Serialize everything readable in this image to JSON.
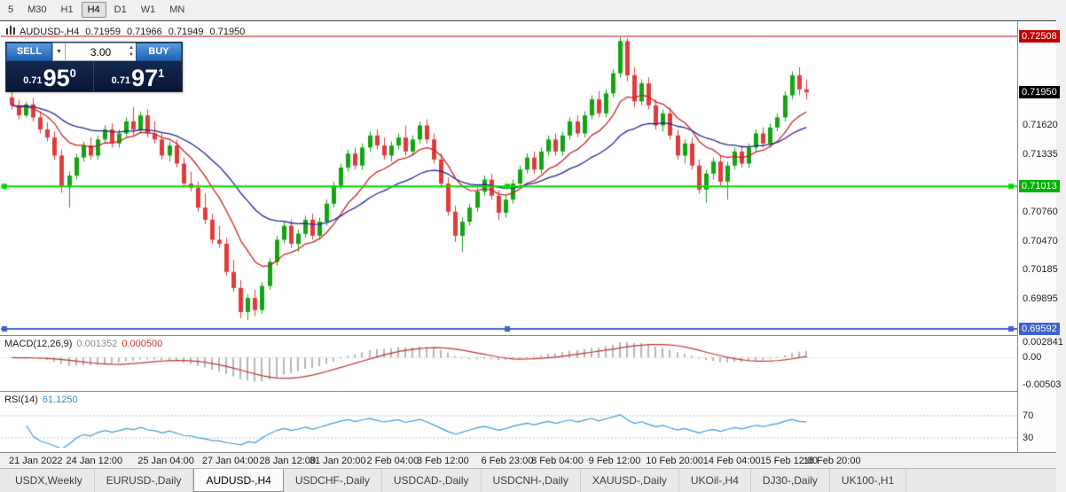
{
  "colors": {
    "up": "#13a413",
    "down": "#e13b3b",
    "ma_fast": "#cc2222",
    "ma_slow": "#22229a",
    "macd_hist": "#b6b6b6",
    "macd_signal": "#c43333",
    "rsi_line": "#3d9ade",
    "level_line": "#bdbdbd"
  },
  "toolbar": {
    "timeframes": [
      "5",
      "M30",
      "H1",
      "H4",
      "D1",
      "W1",
      "MN"
    ],
    "active": "H4"
  },
  "ohlc": {
    "symbol": "AUDUSD-,H4",
    "open": "0.71959",
    "high": "0.71966",
    "low": "0.71949",
    "close": "0.71950"
  },
  "one_click": {
    "sell_label": "SELL",
    "buy_label": "BUY",
    "volume": "3.00",
    "sell_prefix": "0.71",
    "sell_big": "95",
    "sell_sup": "0",
    "buy_prefix": "0.71",
    "buy_big": "97",
    "buy_sup": "1"
  },
  "price_axis": [
    {
      "text": "0.72508",
      "price": 0.72508,
      "badge": "red"
    },
    {
      "text": "0.71950",
      "price": 0.7195,
      "badge": "black"
    },
    {
      "text": "0.71620",
      "price": 0.7162
    },
    {
      "text": "0.71335",
      "price": 0.71335
    },
    {
      "text": "0.71013",
      "price": 0.71013,
      "badge": "green"
    },
    {
      "text": "0.70760",
      "price": 0.7076
    },
    {
      "text": "0.70470",
      "price": 0.7047
    },
    {
      "text": "0.70185",
      "price": 0.70185
    },
    {
      "text": "0.69895",
      "price": 0.69895
    },
    {
      "text": "0.69592",
      "price": 0.69592,
      "badge": "blue"
    }
  ],
  "hlines": [
    {
      "price": 0.72508,
      "color": "#cc0000",
      "width": 1,
      "handles": false
    },
    {
      "price": 0.71013,
      "color": "#00dd00",
      "width": 2,
      "handles": true
    },
    {
      "price": 0.69592,
      "color": "#3f62cf",
      "width": 2,
      "handles": true
    }
  ],
  "macd": {
    "label": "MACD(12,26,9)",
    "value_main": "0.001352",
    "value_signal": "0.000500",
    "axis_labels": [
      {
        "text": "0.002841",
        "value": 0.002841
      },
      {
        "text": "0.00",
        "value": 0
      },
      {
        "text": "-0.00503",
        "value": -0.00503
      }
    ]
  },
  "rsi": {
    "label": "RSI(14)",
    "value": "61.1250",
    "levels": [
      {
        "text": "70",
        "value": 70
      },
      {
        "text": "30",
        "value": 30
      }
    ]
  },
  "time_axis": [
    {
      "text": "21 Jan 2022",
      "bar": 0
    },
    {
      "text": "24 Jan 12:00",
      "bar": 8
    },
    {
      "text": "25 Jan 04:00",
      "bar": 18
    },
    {
      "text": "27 Jan 04:00",
      "bar": 27
    },
    {
      "text": "28 Jan 12:00",
      "bar": 35
    },
    {
      "text": "31 Jan 20:00",
      "bar": 42
    },
    {
      "text": "2 Feb 04:00",
      "bar": 50
    },
    {
      "text": "3 Feb 12:00",
      "bar": 57
    },
    {
      "text": "6 Feb 23:00",
      "bar": 66
    },
    {
      "text": "8 Feb 04:00",
      "bar": 73
    },
    {
      "text": "9 Feb 12:00",
      "bar": 81
    },
    {
      "text": "10 Feb 20:00",
      "bar": 89
    },
    {
      "text": "14 Feb 04:00",
      "bar": 97
    },
    {
      "text": "15 Feb 12:00",
      "bar": 105
    },
    {
      "text": "16 Feb 20:00",
      "bar": 111
    }
  ],
  "tabs": {
    "items": [
      "USDX,Weekly",
      "EURUSD-,Daily",
      "AUDUSD-,H4",
      "USDCHF-,Daily",
      "USDCAD-,Daily",
      "USDCNH-,Daily",
      "XAUUSD-,Daily",
      "UKOil-,H4",
      "DJ30-,Daily",
      "UK100-,H1"
    ],
    "active": "AUDUSD-,H4"
  },
  "chart_data": {
    "type": "candlestick",
    "symbol": "AUDUSD-",
    "timeframe": "H4",
    "ylim": [
      0.69539,
      0.72632
    ],
    "x_range": [
      "21 Jan 2022",
      "16 Feb 2022 20:00"
    ],
    "ma_fast_period": 10,
    "ma_slow_period": 25,
    "indicators": [
      {
        "name": "MACD",
        "params": [
          12,
          26,
          9
        ],
        "values": [
          0.001352,
          0.0005
        ]
      },
      {
        "name": "RSI",
        "params": [
          14
        ],
        "value": 61.125
      }
    ],
    "candles": [
      [
        0.719,
        0.7196,
        0.7178,
        0.7182
      ],
      [
        0.7182,
        0.7188,
        0.7168,
        0.7172
      ],
      [
        0.7172,
        0.7186,
        0.717,
        0.7183
      ],
      [
        0.7183,
        0.7189,
        0.7166,
        0.717
      ],
      [
        0.717,
        0.7176,
        0.7154,
        0.7158
      ],
      [
        0.7158,
        0.7165,
        0.7146,
        0.715
      ],
      [
        0.715,
        0.7156,
        0.7128,
        0.7132
      ],
      [
        0.7132,
        0.7138,
        0.7095,
        0.7102
      ],
      [
        0.7102,
        0.7116,
        0.708,
        0.7112
      ],
      [
        0.7112,
        0.7134,
        0.7108,
        0.713
      ],
      [
        0.713,
        0.7146,
        0.7126,
        0.7142
      ],
      [
        0.7142,
        0.715,
        0.7128,
        0.7132
      ],
      [
        0.7132,
        0.7152,
        0.7128,
        0.7148
      ],
      [
        0.7148,
        0.7162,
        0.7144,
        0.7158
      ],
      [
        0.7158,
        0.7164,
        0.714,
        0.7144
      ],
      [
        0.7144,
        0.7158,
        0.714,
        0.7154
      ],
      [
        0.7154,
        0.717,
        0.715,
        0.7166
      ],
      [
        0.7166,
        0.718,
        0.7152,
        0.7158
      ],
      [
        0.7158,
        0.7176,
        0.7154,
        0.7172
      ],
      [
        0.7172,
        0.7178,
        0.715,
        0.7154
      ],
      [
        0.7154,
        0.7166,
        0.7144,
        0.7148
      ],
      [
        0.7148,
        0.7154,
        0.7128,
        0.7132
      ],
      [
        0.7132,
        0.7146,
        0.7126,
        0.7142
      ],
      [
        0.7142,
        0.7148,
        0.712,
        0.7124
      ],
      [
        0.7124,
        0.713,
        0.71,
        0.7104
      ],
      [
        0.7104,
        0.7116,
        0.7096,
        0.71
      ],
      [
        0.71,
        0.7106,
        0.7076,
        0.708
      ],
      [
        0.708,
        0.7094,
        0.7064,
        0.7068
      ],
      [
        0.7068,
        0.7074,
        0.7044,
        0.7048
      ],
      [
        0.7048,
        0.7062,
        0.704,
        0.7044
      ],
      [
        0.7044,
        0.705,
        0.7012,
        0.7016
      ],
      [
        0.7016,
        0.7028,
        0.6996,
        0.7
      ],
      [
        0.7,
        0.7008,
        0.697,
        0.6976
      ],
      [
        0.6976,
        0.6994,
        0.6968,
        0.699
      ],
      [
        0.699,
        0.6998,
        0.6972,
        0.6978
      ],
      [
        0.6978,
        0.7006,
        0.6974,
        0.7002
      ],
      [
        0.7002,
        0.703,
        0.6998,
        0.7026
      ],
      [
        0.7026,
        0.7052,
        0.7022,
        0.7048
      ],
      [
        0.7048,
        0.7066,
        0.7044,
        0.7062
      ],
      [
        0.7062,
        0.7068,
        0.704,
        0.7044
      ],
      [
        0.7044,
        0.7058,
        0.7036,
        0.7054
      ],
      [
        0.7054,
        0.7072,
        0.705,
        0.7068
      ],
      [
        0.7068,
        0.7074,
        0.7048,
        0.7052
      ],
      [
        0.7052,
        0.707,
        0.7048,
        0.7066
      ],
      [
        0.7066,
        0.7088,
        0.7062,
        0.7084
      ],
      [
        0.7084,
        0.7106,
        0.708,
        0.7102
      ],
      [
        0.7102,
        0.7124,
        0.7098,
        0.712
      ],
      [
        0.712,
        0.7138,
        0.7116,
        0.7134
      ],
      [
        0.7134,
        0.714,
        0.7118,
        0.7122
      ],
      [
        0.7122,
        0.7144,
        0.7118,
        0.714
      ],
      [
        0.714,
        0.7156,
        0.7136,
        0.7152
      ],
      [
        0.7152,
        0.7158,
        0.7138,
        0.7142
      ],
      [
        0.7142,
        0.715,
        0.7128,
        0.7132
      ],
      [
        0.7132,
        0.7146,
        0.7126,
        0.7142
      ],
      [
        0.7142,
        0.7154,
        0.7138,
        0.715
      ],
      [
        0.715,
        0.7162,
        0.7132,
        0.7136
      ],
      [
        0.7136,
        0.7152,
        0.7132,
        0.7148
      ],
      [
        0.7148,
        0.7166,
        0.7144,
        0.7162
      ],
      [
        0.7162,
        0.7168,
        0.7144,
        0.7148
      ],
      [
        0.7148,
        0.7154,
        0.7124,
        0.7128
      ],
      [
        0.7128,
        0.7134,
        0.71,
        0.7104
      ],
      [
        0.7104,
        0.711,
        0.7072,
        0.7076
      ],
      [
        0.7076,
        0.7082,
        0.7046,
        0.7052
      ],
      [
        0.7052,
        0.707,
        0.7036,
        0.7066
      ],
      [
        0.7066,
        0.7084,
        0.7062,
        0.708
      ],
      [
        0.708,
        0.71,
        0.7076,
        0.7096
      ],
      [
        0.7096,
        0.7112,
        0.7092,
        0.7108
      ],
      [
        0.7108,
        0.7114,
        0.7088,
        0.7092
      ],
      [
        0.7092,
        0.7098,
        0.7068,
        0.7075
      ],
      [
        0.7075,
        0.7092,
        0.707,
        0.7088
      ],
      [
        0.7088,
        0.7108,
        0.7084,
        0.7104
      ],
      [
        0.7104,
        0.7122,
        0.71,
        0.7118
      ],
      [
        0.7118,
        0.7134,
        0.7114,
        0.713
      ],
      [
        0.713,
        0.7136,
        0.7114,
        0.7118
      ],
      [
        0.7118,
        0.714,
        0.7114,
        0.7136
      ],
      [
        0.7136,
        0.7152,
        0.7132,
        0.7148
      ],
      [
        0.7148,
        0.7154,
        0.7132,
        0.7136
      ],
      [
        0.7136,
        0.7156,
        0.7132,
        0.7152
      ],
      [
        0.7152,
        0.717,
        0.7148,
        0.7166
      ],
      [
        0.7166,
        0.7172,
        0.715,
        0.7154
      ],
      [
        0.7154,
        0.7176,
        0.715,
        0.7172
      ],
      [
        0.7172,
        0.7192,
        0.7168,
        0.7188
      ],
      [
        0.7188,
        0.7196,
        0.717,
        0.7174
      ],
      [
        0.7174,
        0.7198,
        0.717,
        0.7194
      ],
      [
        0.7194,
        0.7218,
        0.719,
        0.7214
      ],
      [
        0.7214,
        0.725,
        0.721,
        0.7246
      ],
      [
        0.7246,
        0.7249,
        0.7206,
        0.7212
      ],
      [
        0.7212,
        0.722,
        0.718,
        0.7186
      ],
      [
        0.7186,
        0.7208,
        0.7182,
        0.7204
      ],
      [
        0.7204,
        0.721,
        0.7178,
        0.7182
      ],
      [
        0.7182,
        0.7188,
        0.7158,
        0.7162
      ],
      [
        0.7162,
        0.7178,
        0.7156,
        0.7174
      ],
      [
        0.7174,
        0.718,
        0.7148,
        0.7152
      ],
      [
        0.7152,
        0.7158,
        0.7128,
        0.7132
      ],
      [
        0.7132,
        0.7148,
        0.7124,
        0.7144
      ],
      [
        0.7144,
        0.715,
        0.7118,
        0.7122
      ],
      [
        0.7122,
        0.7128,
        0.7094,
        0.7098
      ],
      [
        0.7098,
        0.7118,
        0.7085,
        0.7114
      ],
      [
        0.7114,
        0.713,
        0.7108,
        0.7126
      ],
      [
        0.7126,
        0.7132,
        0.7102,
        0.7106
      ],
      [
        0.7106,
        0.7126,
        0.7088,
        0.7122
      ],
      [
        0.7122,
        0.714,
        0.7118,
        0.7136
      ],
      [
        0.7136,
        0.7142,
        0.712,
        0.7124
      ],
      [
        0.7124,
        0.7144,
        0.712,
        0.714
      ],
      [
        0.714,
        0.7158,
        0.7136,
        0.7154
      ],
      [
        0.7154,
        0.716,
        0.714,
        0.7144
      ],
      [
        0.7144,
        0.7164,
        0.714,
        0.716
      ],
      [
        0.716,
        0.7174,
        0.7156,
        0.717
      ],
      [
        0.717,
        0.7196,
        0.7166,
        0.7192
      ],
      [
        0.7192,
        0.7216,
        0.7188,
        0.7212
      ],
      [
        0.7212,
        0.722,
        0.7192,
        0.7198
      ],
      [
        0.7198,
        0.7208,
        0.7188,
        0.7195
      ]
    ]
  }
}
